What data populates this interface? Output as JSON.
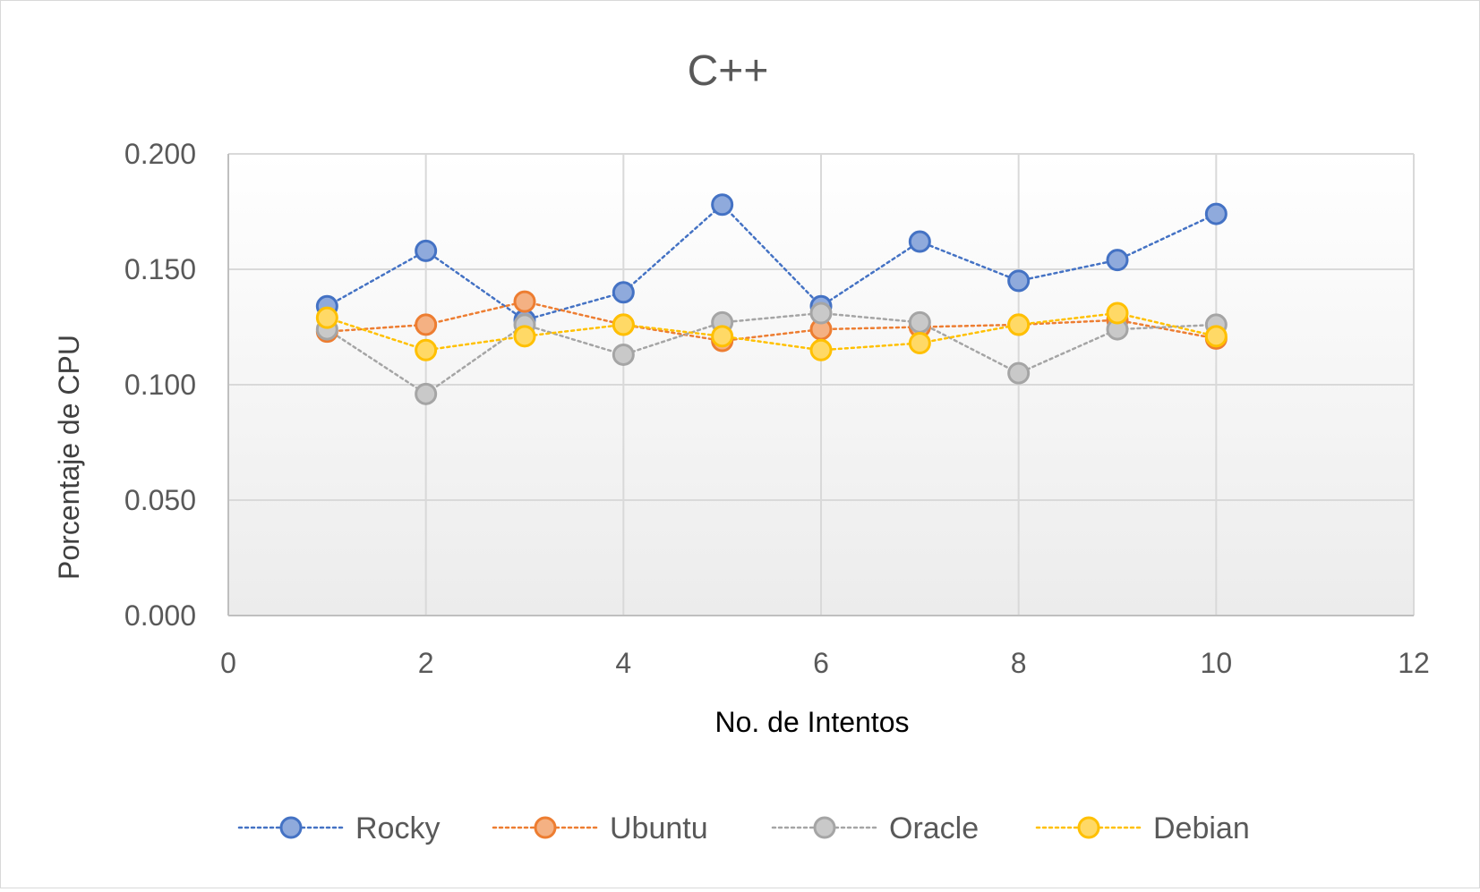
{
  "chart_data": {
    "type": "scatter",
    "title": "C++",
    "xlabel": "No. de Intentos",
    "ylabel": "Porcentaje de CPU",
    "xlim": [
      0,
      12
    ],
    "ylim": [
      0,
      0.2
    ],
    "xticks": [
      0,
      2,
      4,
      6,
      8,
      10,
      12
    ],
    "yticks": [
      0.0,
      0.05,
      0.1,
      0.15,
      0.2
    ],
    "xtick_labels": [
      "0",
      "2",
      "4",
      "6",
      "8",
      "10",
      "12"
    ],
    "ytick_labels": [
      "0.000",
      "0.050",
      "0.100",
      "0.150",
      "0.200"
    ],
    "grid": true,
    "legend_position": "bottom",
    "x": [
      1,
      2,
      3,
      4,
      5,
      6,
      7,
      8,
      9,
      10
    ],
    "series": [
      {
        "name": "Rocky",
        "color": "#4472c4",
        "fill": "#8faadc",
        "values": [
          0.134,
          0.158,
          0.128,
          0.14,
          0.178,
          0.134,
          0.162,
          0.145,
          0.154,
          0.174
        ]
      },
      {
        "name": "Ubuntu",
        "color": "#ed7d31",
        "fill": "#f4b183",
        "values": [
          0.123,
          0.126,
          0.136,
          0.126,
          0.119,
          0.124,
          0.125,
          0.126,
          0.128,
          0.12
        ]
      },
      {
        "name": "Oracle",
        "color": "#a5a5a5",
        "fill": "#c9c9c9",
        "values": [
          0.124,
          0.096,
          0.126,
          0.113,
          0.127,
          0.131,
          0.127,
          0.105,
          0.124,
          0.126
        ]
      },
      {
        "name": "Debian",
        "color": "#ffc000",
        "fill": "#ffd966",
        "values": [
          0.129,
          0.115,
          0.121,
          0.126,
          0.121,
          0.115,
          0.118,
          0.126,
          0.131,
          0.121
        ]
      }
    ]
  }
}
